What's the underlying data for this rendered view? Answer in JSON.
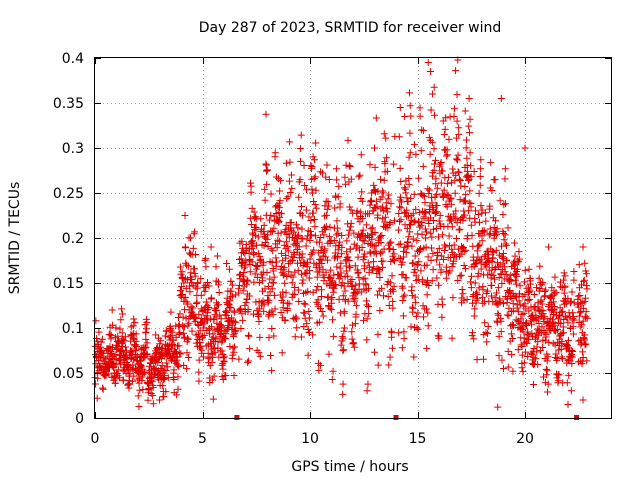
{
  "chart_data": {
    "type": "scatter",
    "title": "Day 287 of 2023, SRMTID for receiver wind",
    "xlabel": "GPS time / hours",
    "ylabel": "SRMTID / TECUs",
    "xlim": [
      0,
      24
    ],
    "ylim": [
      0,
      0.4
    ],
    "x_ticks": [
      0,
      5,
      10,
      15,
      20
    ],
    "x_tick_labels": [
      "0",
      "5",
      "10",
      "15",
      "20"
    ],
    "y_ticks": [
      0,
      0.05,
      0.1,
      0.15,
      0.2,
      0.25,
      0.3,
      0.35,
      0.4
    ],
    "y_tick_labels": [
      "0",
      "0.05",
      "0.1",
      "0.15",
      "0.2",
      "0.25",
      "0.3",
      "0.35",
      "0.4"
    ],
    "grid": true,
    "marker": "plus",
    "color": "#e00000",
    "series": [
      {
        "name": "SRMTID",
        "profile": [
          {
            "x": 0.0,
            "y": 0.06
          },
          {
            "x": 0.5,
            "y": 0.058
          },
          {
            "x": 1.0,
            "y": 0.07
          },
          {
            "x": 2.0,
            "y": 0.062
          },
          {
            "x": 3.0,
            "y": 0.06
          },
          {
            "x": 3.8,
            "y": 0.08
          },
          {
            "x": 4.2,
            "y": 0.14
          },
          {
            "x": 5.0,
            "y": 0.11
          },
          {
            "x": 6.0,
            "y": 0.1
          },
          {
            "x": 6.5,
            "y": 0.11
          },
          {
            "x": 7.0,
            "y": 0.15
          },
          {
            "x": 8.0,
            "y": 0.18
          },
          {
            "x": 9.0,
            "y": 0.185
          },
          {
            "x": 10.0,
            "y": 0.19
          },
          {
            "x": 11.0,
            "y": 0.17
          },
          {
            "x": 12.0,
            "y": 0.18
          },
          {
            "x": 13.0,
            "y": 0.19
          },
          {
            "x": 14.0,
            "y": 0.2
          },
          {
            "x": 15.0,
            "y": 0.21
          },
          {
            "x": 16.0,
            "y": 0.22
          },
          {
            "x": 17.0,
            "y": 0.24
          },
          {
            "x": 18.0,
            "y": 0.18
          },
          {
            "x": 19.0,
            "y": 0.16
          },
          {
            "x": 20.0,
            "y": 0.11
          },
          {
            "x": 21.0,
            "y": 0.1
          },
          {
            "x": 22.0,
            "y": 0.1
          },
          {
            "x": 22.8,
            "y": 0.12
          }
        ],
        "x_range": [
          0.0,
          22.9
        ],
        "gaps": [
          [
            6.55,
            6.68
          ],
          [
            13.95,
            14.1
          ],
          [
            22.3,
            22.45
          ]
        ],
        "point_count": 2600,
        "highlights": [
          {
            "x": 15.5,
            "y": 0.395
          },
          {
            "x": 15.6,
            "y": 0.385
          },
          {
            "x": 15.7,
            "y": 0.36
          },
          {
            "x": 14.2,
            "y": 0.345
          },
          {
            "x": 14.4,
            "y": 0.335
          },
          {
            "x": 17.4,
            "y": 0.355
          },
          {
            "x": 18.9,
            "y": 0.355
          },
          {
            "x": 8.9,
            "y": 0.283
          },
          {
            "x": 8.0,
            "y": 0.275
          },
          {
            "x": 10.9,
            "y": 0.265
          },
          {
            "x": 13.0,
            "y": 0.3
          },
          {
            "x": 16.2,
            "y": 0.33
          },
          {
            "x": 0.8,
            "y": 0.12
          },
          {
            "x": 1.8,
            "y": 0.11
          },
          {
            "x": 4.2,
            "y": 0.19
          },
          {
            "x": 5.4,
            "y": 0.19
          },
          {
            "x": 20.0,
            "y": 0.3
          },
          {
            "x": 21.1,
            "y": 0.19
          },
          {
            "x": 22.7,
            "y": 0.19
          },
          {
            "x": 12.0,
            "y": 0.083
          },
          {
            "x": 13.0,
            "y": 0.073
          },
          {
            "x": 9.6,
            "y": 0.09
          },
          {
            "x": 19.0,
            "y": 0.055
          },
          {
            "x": 22.0,
            "y": 0.015
          },
          {
            "x": 22.7,
            "y": 0.02
          },
          {
            "x": 0.1,
            "y": 0.022
          },
          {
            "x": 3.0,
            "y": 0.02
          }
        ]
      }
    ],
    "missing_data_markers": [
      6.6,
      14.0,
      22.4
    ]
  }
}
